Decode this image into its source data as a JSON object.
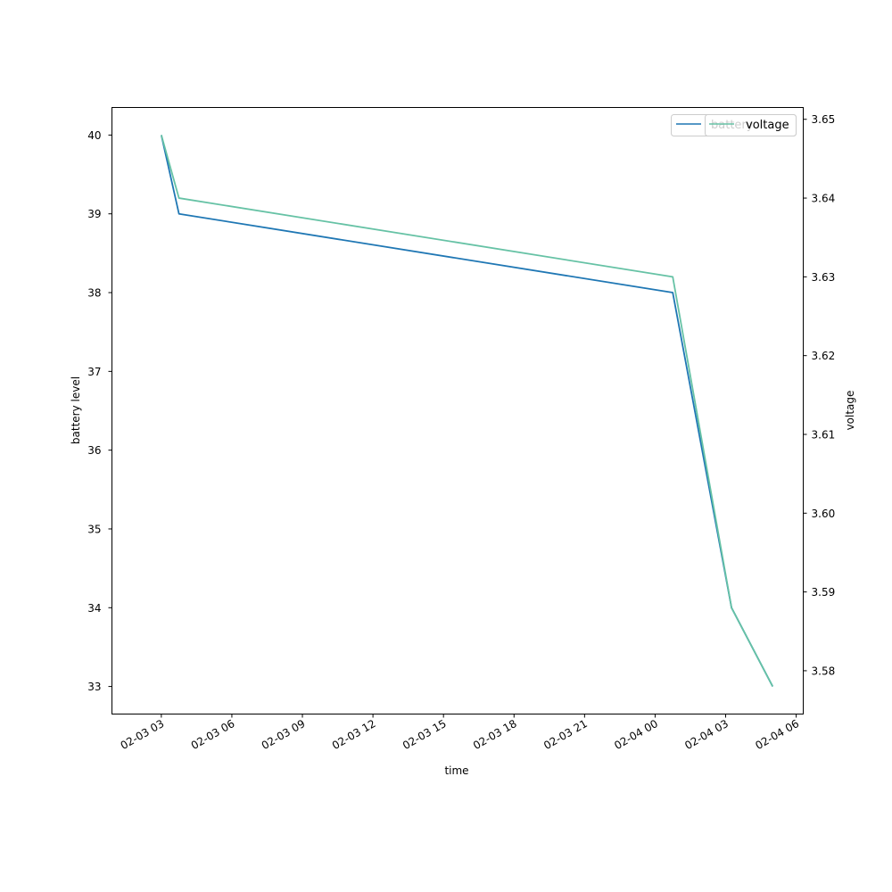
{
  "chart_data": {
    "type": "line",
    "xlabel": "time",
    "x_ticks": [
      "02-03 03",
      "02-03 06",
      "02-03 09",
      "02-03 12",
      "02-03 15",
      "02-03 18",
      "02-03 21",
      "02-04 00",
      "02-04 03",
      "02-04 06"
    ],
    "left_axis": {
      "label": "battery level",
      "ticks": [
        33,
        34,
        35,
        36,
        37,
        38,
        39,
        40
      ],
      "range": [
        32.65,
        40.35
      ]
    },
    "right_axis": {
      "label": "voltage",
      "ticks": [
        3.58,
        3.59,
        3.6,
        3.61,
        3.62,
        3.63,
        3.64,
        3.65
      ],
      "tick_labels": [
        "3.58",
        "3.59",
        "3.60",
        "3.61",
        "3.62",
        "3.63",
        "3.64",
        "3.65"
      ],
      "range": [
        3.5745,
        3.6515
      ]
    },
    "series": [
      {
        "name": "battery",
        "axis": "left",
        "color": "#1f77b4",
        "points": [
          {
            "x": "2024-02-03 03:00",
            "y": 40
          },
          {
            "x": "2024-02-03 03:45",
            "y": 39
          },
          {
            "x": "2024-02-04 00:45",
            "y": 38
          },
          {
            "x": "2024-02-04 03:15",
            "y": 34
          },
          {
            "x": "2024-02-04 05:00",
            "y": 33
          }
        ]
      },
      {
        "name": "voltage",
        "axis": "right",
        "color": "#66c2a5",
        "points": [
          {
            "x": "2024-02-03 03:00",
            "y": 3.648
          },
          {
            "x": "2024-02-03 03:45",
            "y": 3.64
          },
          {
            "x": "2024-02-04 00:45",
            "y": 3.63
          },
          {
            "x": "2024-02-04 03:15",
            "y": 3.588
          },
          {
            "x": "2024-02-04 05:00",
            "y": 3.578
          }
        ]
      }
    ],
    "legend_position": "upper right"
  }
}
